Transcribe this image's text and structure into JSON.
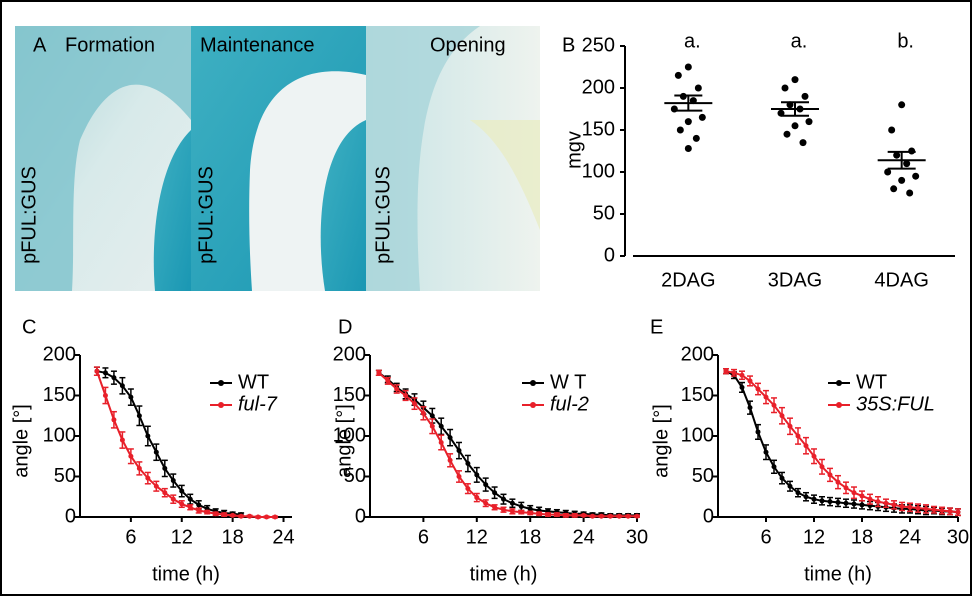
{
  "panel_a": {
    "label": "A",
    "stages": [
      "Formation",
      "Maintenance",
      "Opening"
    ],
    "construct": "pFUL:GUS"
  },
  "chart_data": [
    {
      "type": "dotplot",
      "panel_label": "B",
      "ylabel": "mgv",
      "categories": [
        "2DAG",
        "3DAG",
        "4DAG"
      ],
      "annotations": [
        "a.",
        "a.",
        "b."
      ],
      "groups": [
        [
          225,
          215,
          200,
          190,
          185,
          175,
          165,
          160,
          150,
          140,
          128
        ],
        [
          210,
          200,
          190,
          180,
          175,
          170,
          160,
          155,
          145,
          135
        ],
        [
          180,
          150,
          125,
          120,
          110,
          100,
          95,
          90,
          80,
          75
        ]
      ],
      "means": [
        182,
        175,
        114
      ],
      "sems": [
        9,
        8,
        10
      ],
      "color": "#000000",
      "ylim": [
        0,
        250
      ],
      "yticks": [
        0,
        50,
        100,
        150,
        200,
        250
      ]
    },
    {
      "type": "line",
      "panel_label": "C",
      "ylabel": "angle [°]",
      "xlabel": "time (h)",
      "x": [
        2,
        3,
        4,
        5,
        6,
        7,
        8,
        9,
        10,
        11,
        12,
        13,
        14,
        15,
        16,
        17,
        18,
        19,
        20,
        21,
        22,
        23
      ],
      "series": [
        {
          "name": "WT",
          "color": "#000000",
          "italic": false,
          "values": [
            180,
            178,
            172,
            162,
            148,
            125,
            100,
            80,
            60,
            45,
            32,
            22,
            15,
            10,
            7,
            5,
            4,
            3,
            null,
            null,
            null,
            null
          ],
          "errors": [
            5,
            6,
            8,
            10,
            10,
            12,
            12,
            10,
            10,
            8,
            7,
            6,
            5,
            4,
            3,
            3,
            2,
            2,
            null,
            null,
            null,
            null
          ]
        },
        {
          "name": "ful-7",
          "color": "#e8202a",
          "italic": true,
          "values": [
            180,
            150,
            120,
            95,
            75,
            60,
            48,
            38,
            30,
            22,
            16,
            12,
            8,
            6,
            4,
            3,
            2,
            1,
            1,
            0,
            0,
            0
          ],
          "errors": [
            5,
            10,
            10,
            10,
            9,
            8,
            7,
            6,
            5,
            5,
            4,
            3,
            3,
            2,
            2,
            2,
            1,
            1,
            1,
            1,
            1,
            1
          ]
        }
      ],
      "xlim": [
        0,
        25
      ],
      "xticks": [
        6,
        12,
        18,
        24
      ],
      "ylim": [
        0,
        200
      ],
      "yticks": [
        0,
        50,
        100,
        150,
        200
      ]
    },
    {
      "type": "line",
      "panel_label": "D",
      "ylabel": "angle [°]",
      "xlabel": "time (h)",
      "x": [
        1,
        2,
        3,
        4,
        5,
        6,
        7,
        8,
        9,
        10,
        11,
        12,
        13,
        14,
        15,
        16,
        17,
        18,
        19,
        20,
        21,
        22,
        23,
        24,
        25,
        26,
        27,
        28,
        29,
        30
      ],
      "series": [
        {
          "name": "W T",
          "color": "#000000",
          "italic": false,
          "values": [
            178,
            170,
            160,
            152,
            145,
            135,
            125,
            112,
            98,
            82,
            66,
            52,
            40,
            30,
            22,
            17,
            13,
            10,
            8,
            7,
            6,
            5,
            4,
            4,
            3,
            3,
            2,
            2,
            2,
            2
          ],
          "errors": [
            3,
            4,
            5,
            6,
            7,
            8,
            9,
            10,
            10,
            10,
            10,
            9,
            8,
            7,
            6,
            5,
            5,
            4,
            4,
            3,
            3,
            3,
            3,
            2,
            2,
            2,
            2,
            2,
            2,
            2
          ]
        },
        {
          "name": "ful-2",
          "color": "#e8202a",
          "italic": true,
          "values": [
            178,
            168,
            158,
            150,
            140,
            128,
            112,
            92,
            70,
            50,
            35,
            24,
            17,
            12,
            9,
            7,
            6,
            5,
            4,
            3,
            3,
            2,
            2,
            2,
            1,
            1,
            1,
            1,
            1,
            1
          ],
          "errors": [
            3,
            4,
            5,
            6,
            7,
            8,
            9,
            9,
            8,
            7,
            6,
            5,
            4,
            3,
            3,
            3,
            2,
            2,
            2,
            2,
            2,
            2,
            2,
            1,
            1,
            1,
            1,
            1,
            1,
            1
          ]
        }
      ],
      "xlim": [
        0,
        30
      ],
      "xticks": [
        6,
        12,
        18,
        24,
        30
      ],
      "ylim": [
        0,
        200
      ],
      "yticks": [
        0,
        50,
        100,
        150,
        200
      ]
    },
    {
      "type": "line",
      "panel_label": "E",
      "ylabel": "angle [°]",
      "xlabel": "time (h)",
      "x": [
        1,
        2,
        3,
        4,
        5,
        6,
        7,
        8,
        9,
        10,
        11,
        12,
        13,
        14,
        15,
        16,
        17,
        18,
        19,
        20,
        21,
        22,
        23,
        24,
        25,
        26,
        27,
        28,
        29,
        30
      ],
      "series": [
        {
          "name": "WT",
          "color": "#000000",
          "italic": false,
          "values": [
            180,
            175,
            160,
            135,
            105,
            80,
            62,
            48,
            38,
            30,
            25,
            22,
            20,
            19,
            18,
            17,
            16,
            15,
            14,
            13,
            12,
            11,
            10,
            10,
            9,
            8,
            8,
            7,
            7,
            6
          ],
          "errors": [
            3,
            4,
            6,
            8,
            9,
            9,
            8,
            7,
            6,
            5,
            5,
            5,
            5,
            5,
            5,
            5,
            5,
            5,
            5,
            5,
            5,
            5,
            5,
            5,
            5,
            5,
            4,
            4,
            4,
            4
          ]
        },
        {
          "name": "35S:FUL",
          "color": "#e8202a",
          "italic": true,
          "values": [
            180,
            178,
            175,
            168,
            158,
            148,
            138,
            125,
            112,
            100,
            88,
            75,
            62,
            52,
            43,
            36,
            30,
            26,
            22,
            19,
            17,
            15,
            13,
            12,
            11,
            10,
            9,
            8,
            7,
            6
          ],
          "errors": [
            3,
            4,
            5,
            6,
            7,
            8,
            9,
            10,
            10,
            10,
            10,
            9,
            9,
            8,
            8,
            7,
            7,
            6,
            6,
            6,
            5,
            5,
            5,
            5,
            5,
            5,
            4,
            4,
            4,
            4
          ]
        }
      ],
      "xlim": [
        0,
        30
      ],
      "xticks": [
        6,
        12,
        18,
        24,
        30
      ],
      "ylim": [
        0,
        200
      ],
      "yticks": [
        0,
        50,
        100,
        150,
        200
      ]
    }
  ]
}
